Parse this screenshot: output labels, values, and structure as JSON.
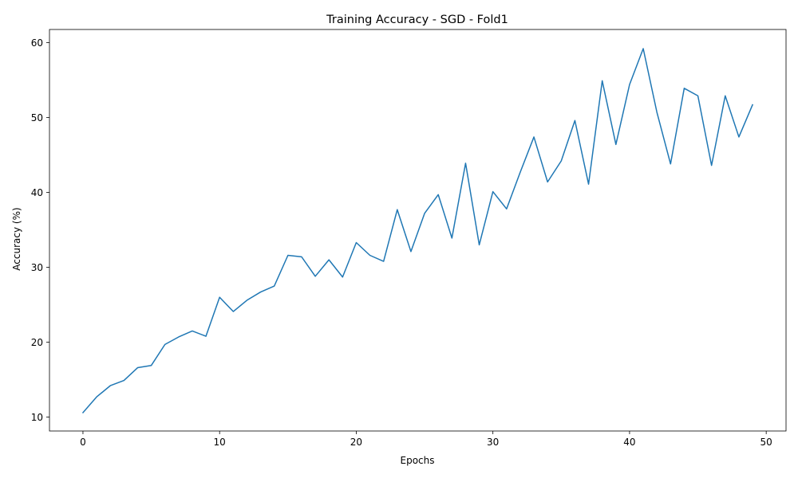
{
  "chart_data": {
    "type": "line",
    "title": "Training Accuracy - SGD - Fold1",
    "xlabel": "Epochs",
    "ylabel": "Accuracy (%)",
    "xlim": [
      -2.45,
      51.45
    ],
    "ylim": [
      8.15,
      61.75
    ],
    "xticks": [
      0,
      10,
      20,
      30,
      40,
      50
    ],
    "yticks": [
      10,
      20,
      30,
      40,
      50,
      60
    ],
    "grid": false,
    "legend": "none",
    "colors": {
      "line": "#1f77b4",
      "axes": "#000000",
      "background": "#ffffff"
    },
    "series": [
      {
        "x": [
          0,
          1,
          2,
          3,
          4,
          5,
          6,
          7,
          8,
          9,
          10,
          11,
          12,
          13,
          14,
          15,
          16,
          17,
          18,
          19,
          20,
          21,
          22,
          23,
          24,
          25,
          26,
          27,
          28,
          29,
          30,
          31,
          32,
          33,
          34,
          35,
          36,
          37,
          38,
          39,
          40,
          41,
          42,
          43,
          44,
          45,
          46,
          47,
          48,
          49
        ],
        "values": [
          10.6,
          12.7,
          14.2,
          14.9,
          16.6,
          16.9,
          19.7,
          20.7,
          21.5,
          20.8,
          26.0,
          24.1,
          25.6,
          26.7,
          27.5,
          31.6,
          31.4,
          28.8,
          31.0,
          28.7,
          33.3,
          31.6,
          30.8,
          37.7,
          32.1,
          37.2,
          39.7,
          33.9,
          43.9,
          33.0,
          40.1,
          37.8,
          42.7,
          47.4,
          41.4,
          44.2,
          49.6,
          41.1,
          54.9,
          46.4,
          54.4,
          59.2,
          50.7,
          43.8,
          53.9,
          52.9,
          43.6,
          52.9,
          47.4,
          51.7
        ]
      }
    ]
  }
}
